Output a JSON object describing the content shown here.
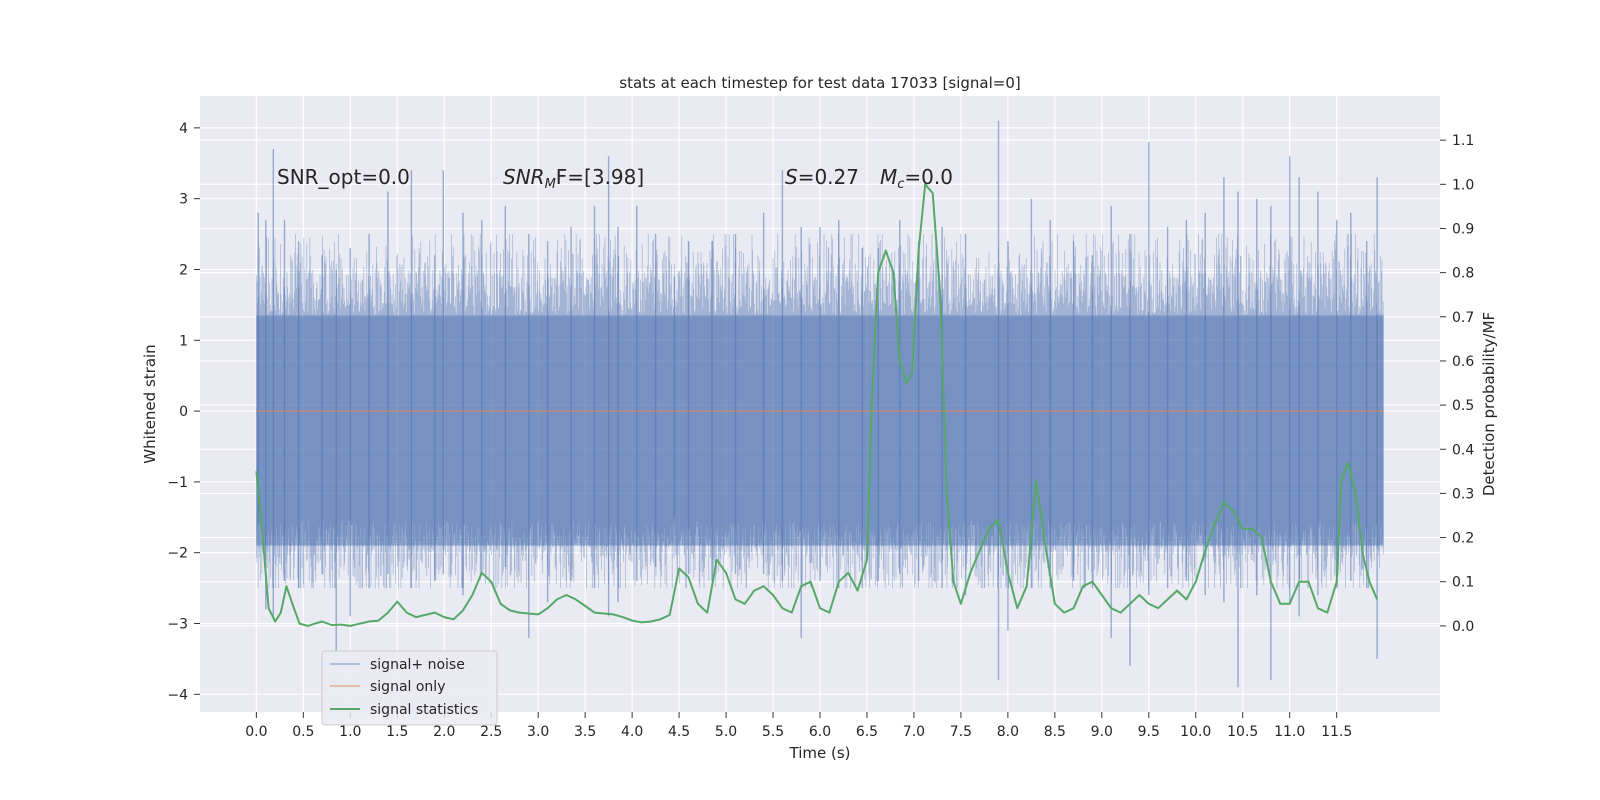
{
  "chart_data": {
    "type": "line",
    "title": "stats at each timestep for test data 17033 [signal=0]",
    "xlabel": "Time (s)",
    "ylabel": "Whitened strain",
    "y2label": "Detection probability/MF",
    "xlim": [
      -0.6,
      12.6
    ],
    "ylim": [
      -4.25,
      4.45
    ],
    "y2lim": [
      -0.195,
      1.2
    ],
    "x_ticks": [
      0.0,
      0.5,
      1.0,
      1.5,
      2.0,
      2.5,
      3.0,
      3.5,
      4.0,
      4.5,
      5.0,
      5.5,
      6.0,
      6.5,
      7.0,
      7.5,
      8.0,
      8.5,
      9.0,
      9.5,
      10.0,
      10.5,
      11.0,
      11.5
    ],
    "x_tick_labels": [
      "0.0",
      "0.5",
      "1.0",
      "1.5",
      "2.0",
      "2.5",
      "3.0",
      "3.5",
      "4.0",
      "4.5",
      "5.0",
      "5.5",
      "6.0",
      "6.5",
      "7.0",
      "7.5",
      "8.0",
      "8.5",
      "9.0",
      "9.5",
      "10.0",
      "10.5",
      "11.0",
      "11.5"
    ],
    "y_ticks": [
      -4,
      -3,
      -2,
      -1,
      0,
      1,
      2,
      3,
      4
    ],
    "y_tick_labels": [
      "−4",
      "−3",
      "−2",
      "−1",
      "0",
      "1",
      "2",
      "3",
      "4"
    ],
    "y2_ticks": [
      0.0,
      0.1,
      0.2,
      0.3,
      0.4,
      0.5,
      0.6,
      0.7,
      0.8,
      0.9,
      1.0,
      1.1
    ],
    "y2_tick_labels": [
      "0.0",
      "0.1",
      "0.2",
      "0.3",
      "0.4",
      "0.5",
      "0.6",
      "0.7",
      "0.8",
      "0.9",
      "1.0",
      "1.1"
    ],
    "grid": true,
    "legend_position": "lower-left",
    "colors": {
      "background": "#eaeaf2",
      "grid": "#ffffff",
      "signal_noise": "#4c72b0",
      "signal_only": "#dd8452",
      "signal_statistics": "#55a868"
    },
    "annotations": {
      "snr_opt": "SNR_opt=0.0",
      "snr_mf_main": "SNR",
      "snr_mf_sub": "M",
      "snr_mf_rest": "F=[3.98]",
      "s_main": "S",
      "s_rest": "=0.27",
      "mc_main": "M",
      "mc_sub": "c",
      "mc_rest": "=0.0"
    },
    "series": [
      {
        "name": "signal+ noise",
        "axis": "left",
        "x_range": [
          0.0,
          12.0
        ],
        "envelope": "band",
        "band": [
          -1.9,
          1.35
        ],
        "peaks": [
          [
            0.02,
            2.8,
            -1.6
          ],
          [
            0.1,
            2.7,
            -2.8
          ],
          [
            0.18,
            3.7,
            -2.9
          ],
          [
            0.3,
            2.7,
            -2.4
          ],
          [
            0.45,
            2.4,
            -2.5
          ],
          [
            0.7,
            2.2,
            -2.3
          ],
          [
            0.85,
            2.0,
            -3.4
          ],
          [
            1.0,
            2.3,
            -2.9
          ],
          [
            1.2,
            2.5,
            -2.5
          ],
          [
            1.4,
            3.1,
            -2.3
          ],
          [
            1.65,
            3.4,
            -2.5
          ],
          [
            1.9,
            2.2,
            -2.4
          ],
          [
            1.99,
            3.4,
            -2.3
          ],
          [
            2.2,
            2.8,
            -2.6
          ],
          [
            2.4,
            2.7,
            -2.3
          ],
          [
            2.65,
            2.9,
            -2.2
          ],
          [
            2.9,
            2.5,
            -3.2
          ],
          [
            3.1,
            2.4,
            -2.7
          ],
          [
            3.35,
            2.6,
            -2.4
          ],
          [
            3.6,
            2.9,
            -2.5
          ],
          [
            3.75,
            3.6,
            -2.9
          ],
          [
            3.85,
            2.6,
            -2.7
          ],
          [
            4.05,
            2.9,
            -2.4
          ],
          [
            4.25,
            2.5,
            -2.2
          ],
          [
            4.45,
            1.9,
            -1.5
          ],
          [
            4.6,
            2.4,
            -2.3
          ],
          [
            4.85,
            2.4,
            -2.4
          ],
          [
            5.1,
            2.5,
            -2.3
          ],
          [
            5.4,
            2.8,
            -2.3
          ],
          [
            5.6,
            3.4,
            -2.4
          ],
          [
            5.8,
            2.6,
            -3.2
          ],
          [
            6.0,
            2.6,
            -2.4
          ],
          [
            6.2,
            2.7,
            -2.5
          ],
          [
            6.45,
            2.3,
            -2.5
          ],
          [
            6.62,
            2.3,
            -2.4
          ],
          [
            6.85,
            2.7,
            -2.3
          ],
          [
            7.05,
            2.4,
            -2.4
          ],
          [
            7.3,
            2.6,
            -2.5
          ],
          [
            7.55,
            2.5,
            -2.6
          ],
          [
            7.9,
            4.1,
            -3.8
          ],
          [
            8.0,
            2.4,
            -3.1
          ],
          [
            8.25,
            3.0,
            -2.5
          ],
          [
            8.45,
            2.7,
            -2.5
          ],
          [
            8.7,
            2.4,
            -2.4
          ],
          [
            8.9,
            2.2,
            -2.5
          ],
          [
            9.1,
            2.9,
            -3.2
          ],
          [
            9.3,
            2.5,
            -3.6
          ],
          [
            9.5,
            3.8,
            -2.6
          ],
          [
            9.7,
            2.6,
            -2.5
          ],
          [
            9.9,
            2.7,
            -2.4
          ],
          [
            10.1,
            2.8,
            -2.6
          ],
          [
            10.3,
            3.3,
            -2.7
          ],
          [
            10.45,
            3.1,
            -3.9
          ],
          [
            10.65,
            3.0,
            -2.6
          ],
          [
            10.8,
            2.9,
            -3.8
          ],
          [
            11.0,
            3.6,
            -2.7
          ],
          [
            11.1,
            3.3,
            -2.9
          ],
          [
            11.3,
            3.1,
            -2.6
          ],
          [
            11.5,
            2.7,
            -2.5
          ],
          [
            11.65,
            2.8,
            -2.4
          ],
          [
            11.82,
            2.4,
            -2.5
          ],
          [
            11.93,
            3.3,
            -3.5
          ]
        ]
      },
      {
        "name": "signal only",
        "axis": "left",
        "x": [
          0.0,
          12.0
        ],
        "y": [
          0.0,
          0.0
        ]
      },
      {
        "name": "signal statistics",
        "axis": "right",
        "x": [
          0.0,
          0.06,
          0.13,
          0.2,
          0.26,
          0.32,
          0.4,
          0.46,
          0.55,
          0.62,
          0.7,
          0.8,
          0.9,
          1.0,
          1.1,
          1.2,
          1.3,
          1.4,
          1.5,
          1.6,
          1.7,
          1.8,
          1.9,
          2.0,
          2.1,
          2.2,
          2.3,
          2.4,
          2.5,
          2.6,
          2.7,
          2.8,
          2.9,
          3.0,
          3.1,
          3.2,
          3.3,
          3.4,
          3.5,
          3.6,
          3.7,
          3.8,
          3.9,
          4.0,
          4.1,
          4.2,
          4.3,
          4.4,
          4.5,
          4.6,
          4.7,
          4.8,
          4.9,
          5.0,
          5.1,
          5.2,
          5.3,
          5.4,
          5.5,
          5.6,
          5.7,
          5.8,
          5.9,
          6.0,
          6.1,
          6.2,
          6.3,
          6.4,
          6.5,
          6.55,
          6.62,
          6.7,
          6.78,
          6.85,
          6.92,
          6.98,
          7.05,
          7.12,
          7.2,
          7.28,
          7.35,
          7.42,
          7.5,
          7.6,
          7.7,
          7.8,
          7.9,
          8.0,
          8.1,
          8.2,
          8.3,
          8.4,
          8.5,
          8.6,
          8.7,
          8.8,
          8.9,
          9.0,
          9.1,
          9.2,
          9.3,
          9.4,
          9.5,
          9.6,
          9.7,
          9.8,
          9.9,
          10.0,
          10.1,
          10.2,
          10.3,
          10.4,
          10.5,
          10.6,
          10.7,
          10.8,
          10.9,
          11.0,
          11.1,
          11.2,
          11.3,
          11.4,
          11.5,
          11.55,
          11.62,
          11.7,
          11.78,
          11.85,
          11.93
        ],
        "y": [
          0.35,
          0.22,
          0.04,
          0.01,
          0.03,
          0.09,
          0.04,
          0.005,
          0.0,
          0.005,
          0.01,
          0.002,
          0.003,
          0.0,
          0.005,
          0.01,
          0.012,
          0.03,
          0.055,
          0.03,
          0.02,
          0.025,
          0.03,
          0.02,
          0.015,
          0.035,
          0.07,
          0.12,
          0.1,
          0.05,
          0.035,
          0.03,
          0.028,
          0.026,
          0.04,
          0.06,
          0.07,
          0.06,
          0.045,
          0.03,
          0.028,
          0.026,
          0.02,
          0.012,
          0.008,
          0.01,
          0.015,
          0.025,
          0.13,
          0.11,
          0.05,
          0.03,
          0.15,
          0.12,
          0.06,
          0.05,
          0.08,
          0.09,
          0.07,
          0.04,
          0.03,
          0.09,
          0.1,
          0.04,
          0.03,
          0.1,
          0.12,
          0.08,
          0.15,
          0.5,
          0.8,
          0.85,
          0.8,
          0.6,
          0.55,
          0.57,
          0.85,
          1.0,
          0.98,
          0.75,
          0.3,
          0.1,
          0.05,
          0.12,
          0.17,
          0.22,
          0.24,
          0.12,
          0.04,
          0.09,
          0.33,
          0.18,
          0.05,
          0.03,
          0.04,
          0.09,
          0.1,
          0.07,
          0.04,
          0.03,
          0.05,
          0.07,
          0.05,
          0.04,
          0.06,
          0.08,
          0.06,
          0.1,
          0.17,
          0.23,
          0.28,
          0.26,
          0.22,
          0.22,
          0.2,
          0.1,
          0.05,
          0.05,
          0.1,
          0.1,
          0.04,
          0.03,
          0.1,
          0.33,
          0.37,
          0.3,
          0.16,
          0.1,
          0.06
        ]
      }
    ]
  }
}
